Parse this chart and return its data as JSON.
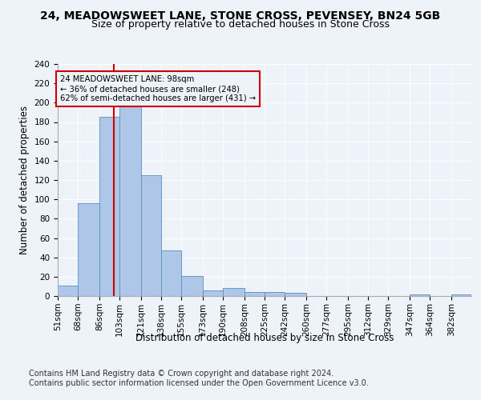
{
  "title_line1": "24, MEADOWSWEET LANE, STONE CROSS, PEVENSEY, BN24 5GB",
  "title_line2": "Size of property relative to detached houses in Stone Cross",
  "xlabel": "Distribution of detached houses by size in Stone Cross",
  "ylabel": "Number of detached properties",
  "footnote1": "Contains HM Land Registry data © Crown copyright and database right 2024.",
  "footnote2": "Contains public sector information licensed under the Open Government Licence v3.0.",
  "annotation_line1": "24 MEADOWSWEET LANE: 98sqm",
  "annotation_line2": "← 36% of detached houses are smaller (248)",
  "annotation_line3": "62% of semi-detached houses are larger (431) →",
  "bar_edges": [
    51,
    68,
    86,
    103,
    121,
    138,
    155,
    173,
    190,
    208,
    225,
    242,
    260,
    277,
    295,
    312,
    329,
    347,
    364,
    382,
    399
  ],
  "bar_heights": [
    11,
    96,
    185,
    197,
    125,
    47,
    21,
    6,
    8,
    4,
    4,
    3,
    0,
    0,
    0,
    0,
    0,
    2,
    0,
    2,
    0
  ],
  "bar_color": "#aec6e8",
  "bar_edgecolor": "#5a8fc0",
  "red_line_x": 98,
  "ylim": [
    0,
    240
  ],
  "yticks": [
    0,
    20,
    40,
    60,
    80,
    100,
    120,
    140,
    160,
    180,
    200,
    220,
    240
  ],
  "bg_color": "#eef2f9",
  "grid_color": "#ffffff",
  "annotation_box_color": "#cc0000",
  "title_fontsize": 10,
  "subtitle_fontsize": 9,
  "axis_label_fontsize": 8.5,
  "tick_fontsize": 7.5,
  "footnote_fontsize": 7
}
